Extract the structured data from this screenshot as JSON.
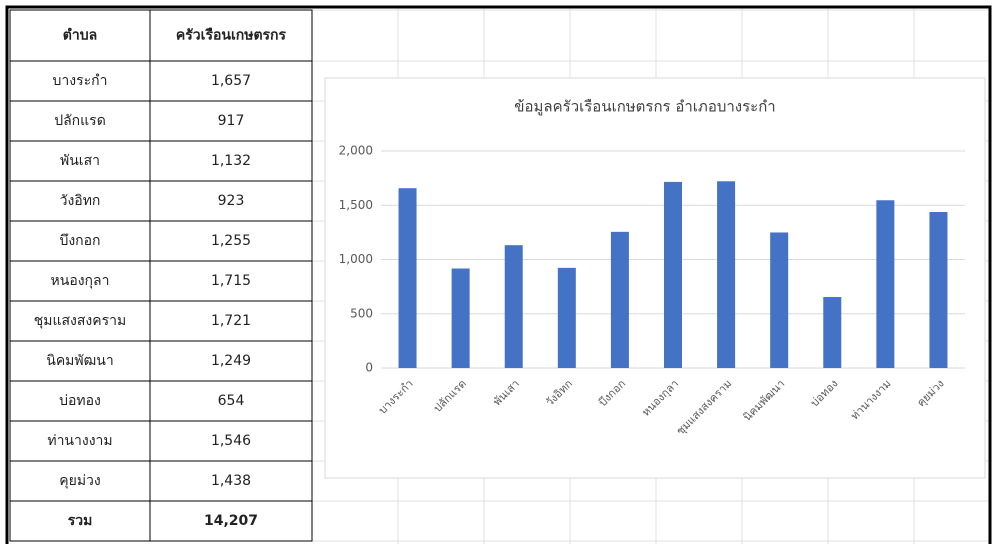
{
  "table": {
    "header": [
      "ตำบล",
      "ครัวเรือนเกษตรกร"
    ],
    "rows": [
      [
        "บางระกำ",
        "1,657"
      ],
      [
        "ปลักแรด",
        "917"
      ],
      [
        "พันเสา",
        "1,132"
      ],
      [
        "วังอิทก",
        "923"
      ],
      [
        "บึงกอก",
        "1,255"
      ],
      [
        "หนองกุลา",
        "1,715"
      ],
      [
        "ชุมแสงสงคราม",
        "1,721"
      ],
      [
        "นิคมพัฒนา",
        "1,249"
      ],
      [
        "บ่อทอง",
        "654"
      ],
      [
        "ท่านางงาม",
        "1,546"
      ],
      [
        "คุยม่วง",
        "1,438"
      ]
    ],
    "total": [
      "รวม",
      "14,207"
    ]
  },
  "chart_data": {
    "type": "bar",
    "title": "ข้อมูลครัวเรือนเกษตรกร อำเภอบางระกำ",
    "categories": [
      "บางระกำ",
      "ปลักแรด",
      "พันเสา",
      "วังอิทก",
      "บึงกอก",
      "หนองกุลา",
      "ชุมแสงสงคราม",
      "นิคมพัฒนา",
      "บ่อทอง",
      "ท่านางงาม",
      "คุยม่วง"
    ],
    "values": [
      1657,
      917,
      1132,
      923,
      1255,
      1715,
      1721,
      1249,
      654,
      1546,
      1438
    ],
    "color": "#4472c4",
    "ylim": [
      0,
      2000
    ],
    "yticks": [
      0,
      500,
      {
        "value": 1000,
        "label": "1,000"
      },
      {
        "value": 1500,
        "label": "1,500"
      },
      {
        "value": 2000,
        "label": "2,000"
      }
    ],
    "grid": true
  }
}
